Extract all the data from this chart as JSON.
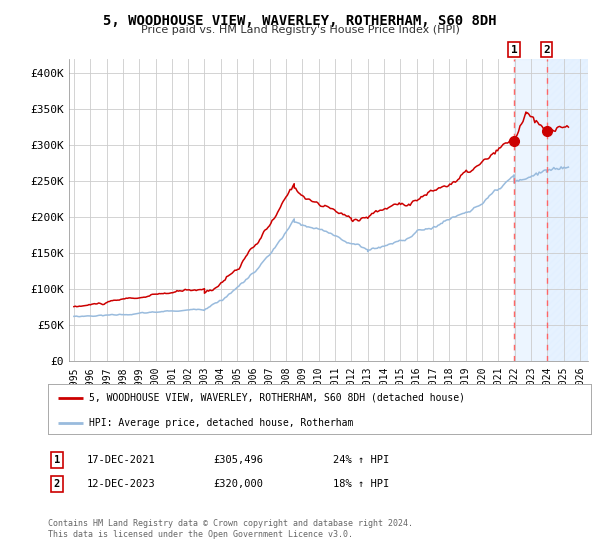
{
  "title": "5, WOODHOUSE VIEW, WAVERLEY, ROTHERHAM, S60 8DH",
  "subtitle": "Price paid vs. HM Land Registry's House Price Index (HPI)",
  "legend_label_red": "5, WOODHOUSE VIEW, WAVERLEY, ROTHERHAM, S60 8DH (detached house)",
  "legend_label_blue": "HPI: Average price, detached house, Rotherham",
  "annotation1_label": "1",
  "annotation1_date": "17-DEC-2021",
  "annotation1_price": "£305,496",
  "annotation1_hpi": "24% ↑ HPI",
  "annotation2_label": "2",
  "annotation2_date": "12-DEC-2023",
  "annotation2_price": "£320,000",
  "annotation2_hpi": "18% ↑ HPI",
  "footnote1": "Contains HM Land Registry data © Crown copyright and database right 2024.",
  "footnote2": "This data is licensed under the Open Government Licence v3.0.",
  "xlim": [
    1994.7,
    2026.5
  ],
  "ylim": [
    0,
    420000
  ],
  "yticks": [
    0,
    50000,
    100000,
    150000,
    200000,
    250000,
    300000,
    350000,
    400000
  ],
  "ytick_labels": [
    "£0",
    "£50K",
    "£100K",
    "£150K",
    "£200K",
    "£250K",
    "£300K",
    "£350K",
    "£400K"
  ],
  "color_red": "#cc0000",
  "color_blue": "#99bbdd",
  "marker_color": "#cc0000",
  "vline1_x": 2021.97,
  "vline2_x": 2023.96,
  "shade_color": "#ddeeff",
  "point1_x": 2021.97,
  "point1_y": 305496,
  "point2_x": 2023.96,
  "point2_y": 320000,
  "background_color": "#ffffff",
  "grid_color": "#cccccc"
}
